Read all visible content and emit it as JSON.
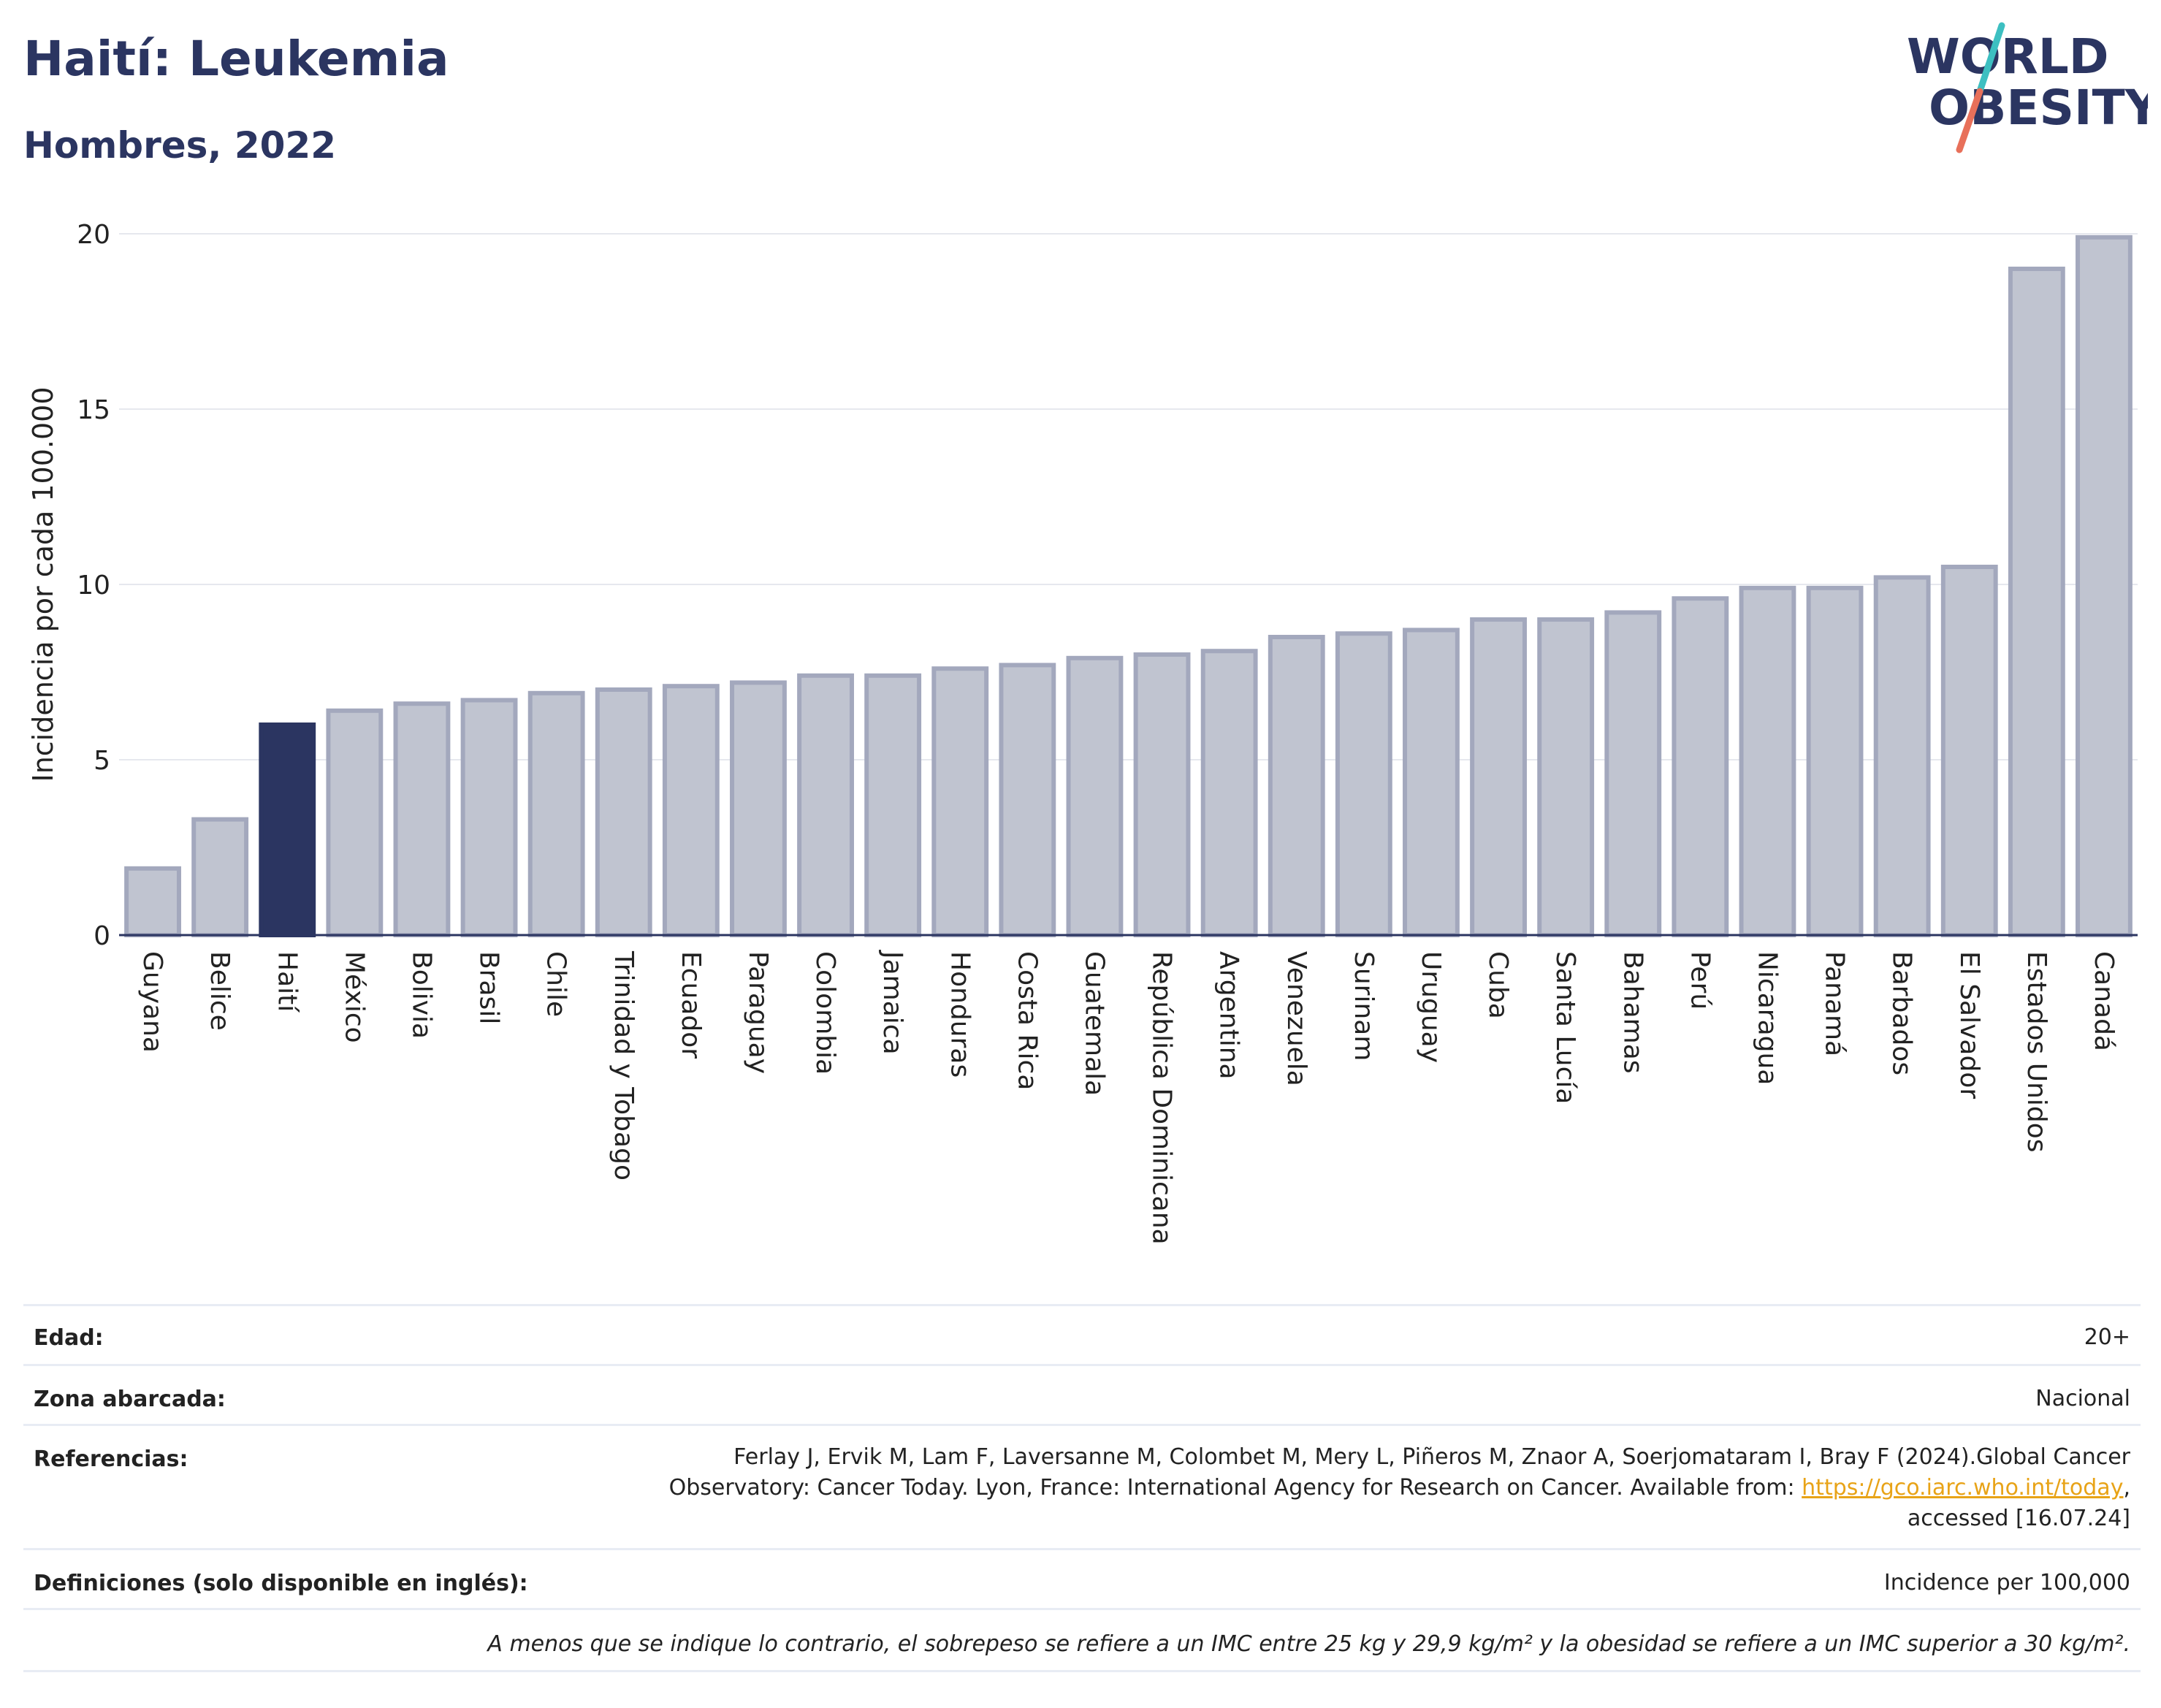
{
  "header": {
    "title": "Haití: Leukemia",
    "subtitle": "Hombres, 2022",
    "logo_line1": "WORLD",
    "logo_line2": "OBESITY"
  },
  "colors": {
    "title": "#2b3561",
    "bar_default": "#c0c4d0",
    "bar_default_border": "#a3a8bd",
    "bar_highlight": "#2b3561",
    "grid": "#e6e8ee",
    "logo_teal": "#3dbfc1",
    "logo_coral": "#e8705a",
    "link": "#e8a317"
  },
  "chart_data": {
    "type": "bar",
    "ylabel": "Incidencia por cada 100.000",
    "ylim": [
      0,
      20
    ],
    "yticks": [
      0,
      5,
      10,
      15,
      20
    ],
    "highlight": "Haití",
    "categories": [
      "Guyana",
      "Belice",
      "Haití",
      "México",
      "Bolivia",
      "Brasil",
      "Chile",
      "Trinidad y Tobago",
      "Ecuador",
      "Paraguay",
      "Colombia",
      "Jamaica",
      "Honduras",
      "Costa Rica",
      "Guatemala",
      "República Dominicana",
      "Argentina",
      "Venezuela",
      "Surinam",
      "Uruguay",
      "Cuba",
      "Santa Lucía",
      "Bahamas",
      "Perú",
      "Nicaragua",
      "Panamá",
      "Barbados",
      "El Salvador",
      "Estados Unidos",
      "Canadá"
    ],
    "values": [
      1.9,
      3.3,
      6.0,
      6.4,
      6.6,
      6.7,
      6.9,
      7.0,
      7.1,
      7.2,
      7.4,
      7.4,
      7.6,
      7.7,
      7.9,
      8.0,
      8.1,
      8.5,
      8.6,
      8.7,
      9.0,
      9.0,
      9.2,
      9.6,
      9.9,
      9.9,
      10.2,
      10.5,
      19.0,
      19.9
    ],
    "grid": true
  },
  "info": {
    "age_label": "Edad:",
    "age_value": "20+",
    "zone_label": "Zona abarcada:",
    "zone_value": "Nacional",
    "refs_label": "Referencias:",
    "refs_line1": "Ferlay J, Ervik M, Lam F, Laversanne M, Colombet M, Mery L, Piñeros M, Znaor A, Soerjomataram I, Bray F (2024).Global Cancer",
    "refs_line2_prefix": "Observatory: Cancer Today. Lyon, France: International Agency for Research on Cancer. Available from: ",
    "refs_link": "https://gco.iarc.who.int/today",
    "refs_line2_suffix": ",",
    "refs_line3": "accessed [16.07.24]",
    "defs_label": "Definiciones (solo disponible en inglés):",
    "defs_value": "Incidence per 100,000",
    "footnote": "A menos que se indique lo contrario, el sobrepeso se refiere a un IMC entre 25 kg y 29,9 kg/m² y la obesidad se refiere a un IMC superior a 30 kg/m²."
  }
}
